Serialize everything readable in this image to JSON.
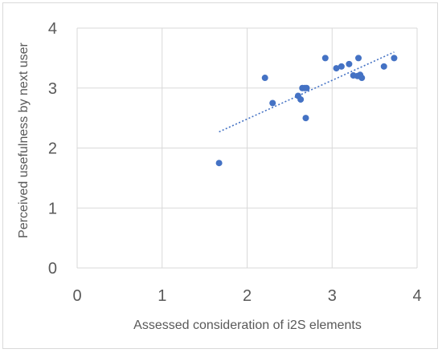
{
  "chart_data": {
    "type": "scatter",
    "title": "",
    "xlabel": "Assessed consideration of i2S elements",
    "ylabel": "Perceived usefulness by next user",
    "xlim": [
      0,
      4
    ],
    "ylim": [
      0,
      4
    ],
    "x_ticks": [
      "0",
      "1",
      "2",
      "3",
      "4"
    ],
    "y_ticks": [
      "0",
      "1",
      "2",
      "3",
      "4"
    ],
    "grid": true,
    "legend": "none",
    "series": [
      {
        "color": "#4472C4",
        "points": [
          {
            "x": 1.67,
            "y": 1.75
          },
          {
            "x": 2.21,
            "y": 3.17
          },
          {
            "x": 2.3,
            "y": 2.75
          },
          {
            "x": 2.6,
            "y": 2.87
          },
          {
            "x": 2.63,
            "y": 2.81
          },
          {
            "x": 2.65,
            "y": 3.0
          },
          {
            "x": 2.68,
            "y": 3.0
          },
          {
            "x": 2.7,
            "y": 3.0
          },
          {
            "x": 2.69,
            "y": 2.5
          },
          {
            "x": 2.92,
            "y": 3.5
          },
          {
            "x": 3.05,
            "y": 3.33
          },
          {
            "x": 3.11,
            "y": 3.36
          },
          {
            "x": 3.2,
            "y": 3.4
          },
          {
            "x": 3.25,
            "y": 3.21
          },
          {
            "x": 3.3,
            "y": 3.2
          },
          {
            "x": 3.31,
            "y": 3.5
          },
          {
            "x": 3.33,
            "y": 3.22
          },
          {
            "x": 3.35,
            "y": 3.17
          },
          {
            "x": 3.61,
            "y": 3.36
          },
          {
            "x": 3.73,
            "y": 3.5
          }
        ]
      }
    ],
    "trendline": {
      "kind": "linear",
      "style": "dotted",
      "color": "#4472C4",
      "x_start": 1.67,
      "y_start": 2.27,
      "x_end": 3.73,
      "y_end": 3.6
    }
  }
}
